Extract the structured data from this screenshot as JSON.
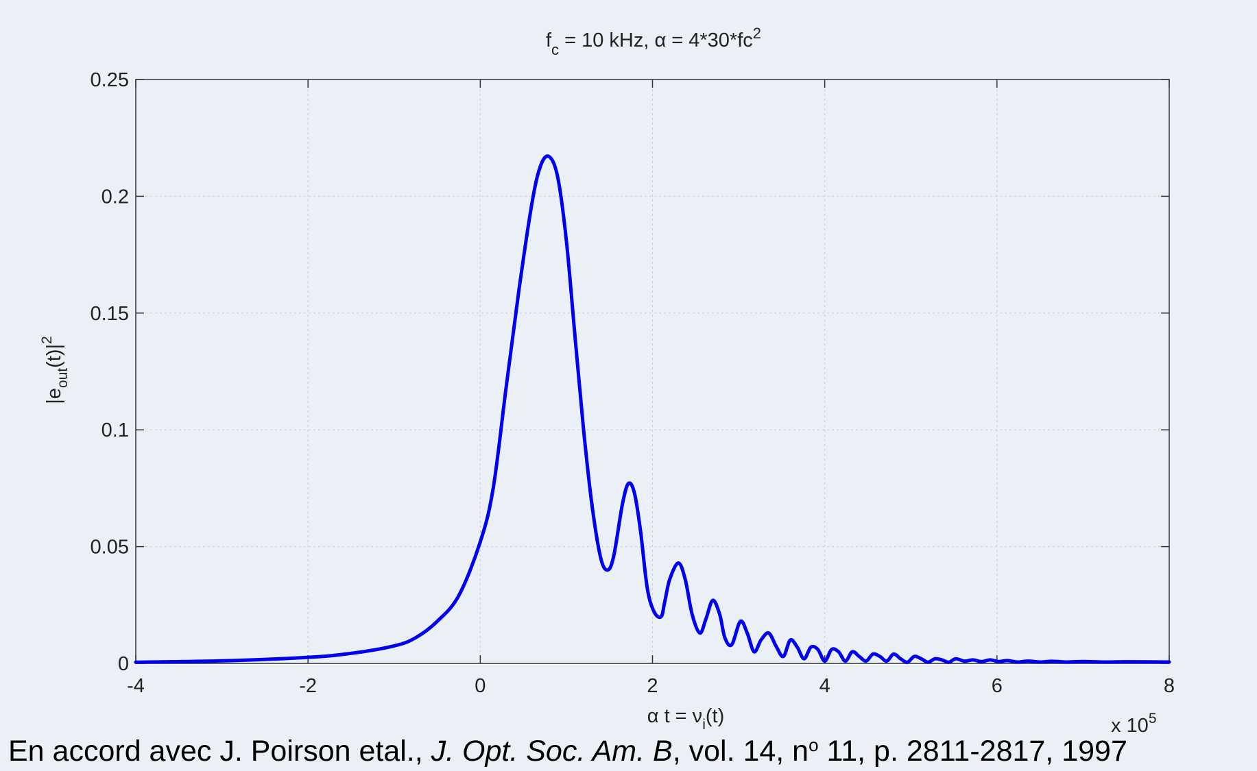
{
  "chart_data": {
    "type": "line",
    "title": {
      "base": "f",
      "sub": "c",
      "mid": " = 10 kHz, ",
      "alpha": "α",
      "rest": " = 4*30*fc",
      "sup": "2"
    },
    "xlabel": {
      "alpha": "α",
      "pre": " t = ν",
      "sub": "i",
      "post": "(t)"
    },
    "ylabel": {
      "pre": "|e",
      "sub": "out",
      "mid": "(t)|",
      "sup": "2"
    },
    "x_multiplier": {
      "text": "x 10",
      "sup": "5"
    },
    "xlim": [
      -4,
      8
    ],
    "ylim": [
      0,
      0.25
    ],
    "xticks": [
      -4,
      -2,
      0,
      2,
      4,
      6,
      8
    ],
    "xtick_labels": [
      "-4",
      "-2",
      "0",
      "2",
      "4",
      "6",
      "8"
    ],
    "yticks": [
      0,
      0.05,
      0.1,
      0.15,
      0.2,
      0.25
    ],
    "ytick_labels": [
      "0",
      "0.05",
      "0.1",
      "0.15",
      "0.2",
      "0.25"
    ],
    "grid": true,
    "series": [
      {
        "color": "#0000ee",
        "x": [
          -4,
          -3,
          -2,
          -1.5,
          -1,
          -0.75,
          -0.5,
          -0.25,
          0,
          0.15,
          0.3,
          0.45,
          0.6,
          0.7,
          0.8,
          0.9,
          1.0,
          1.1,
          1.2,
          1.3,
          1.4,
          1.48,
          1.55,
          1.65,
          1.72,
          1.79,
          1.86,
          1.94,
          2.02,
          2.1,
          2.14,
          2.2,
          2.3,
          2.38,
          2.46,
          2.55,
          2.62,
          2.7,
          2.78,
          2.84,
          2.92,
          3.02,
          3.1,
          3.18,
          3.26,
          3.35,
          3.44,
          3.52,
          3.6,
          3.68,
          3.76,
          3.84,
          3.92,
          4.0,
          4.08,
          4.16,
          4.24,
          4.32,
          4.4,
          4.48,
          4.56,
          4.64,
          4.72,
          4.8,
          4.88,
          4.96,
          5.04,
          5.12,
          5.2,
          5.28,
          5.36,
          5.44,
          5.52,
          5.62,
          5.72,
          5.82,
          5.92,
          6.02,
          6.12,
          6.24,
          6.36,
          6.5,
          6.64,
          6.8,
          7.0,
          7.25,
          7.5,
          8.0
        ],
        "y": [
          0.0005,
          0.0011,
          0.0026,
          0.0043,
          0.0075,
          0.011,
          0.018,
          0.029,
          0.052,
          0.075,
          0.118,
          0.16,
          0.197,
          0.213,
          0.217,
          0.208,
          0.181,
          0.14,
          0.1,
          0.067,
          0.045,
          0.04,
          0.046,
          0.068,
          0.077,
          0.073,
          0.057,
          0.032,
          0.022,
          0.02,
          0.026,
          0.036,
          0.043,
          0.036,
          0.021,
          0.013,
          0.019,
          0.027,
          0.021,
          0.011,
          0.008,
          0.018,
          0.013,
          0.005,
          0.01,
          0.013,
          0.007,
          0.003,
          0.01,
          0.007,
          0.002,
          0.007,
          0.006,
          0.001,
          0.006,
          0.005,
          0.001,
          0.005,
          0.003,
          0.001,
          0.004,
          0.003,
          0.001,
          0.004,
          0.002,
          0.0005,
          0.003,
          0.002,
          0.0005,
          0.002,
          0.0015,
          0.0005,
          0.002,
          0.001,
          0.0015,
          0.0008,
          0.0015,
          0.0008,
          0.0012,
          0.0006,
          0.001,
          0.0006,
          0.0009,
          0.0006,
          0.0008,
          0.0006,
          0.0007,
          0.0006
        ]
      }
    ]
  },
  "caption": {
    "pre": "En accord avec J. Poirson etal., ",
    "journal": "J. Opt. Soc. Am. B",
    "mid": ", vol. 14, n",
    "sup": "o",
    "post": " 11, p. 2811-2817, 1997"
  }
}
